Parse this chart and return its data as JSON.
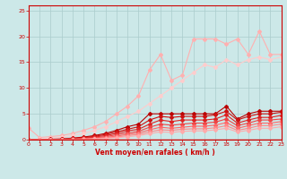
{
  "xlabel": "Vent moyen/en rafales ( km/h )",
  "ylabel": "",
  "xlim": [
    0,
    23
  ],
  "ylim": [
    0,
    26
  ],
  "yticks": [
    0,
    5,
    10,
    15,
    20,
    25
  ],
  "xticks": [
    0,
    1,
    2,
    3,
    4,
    5,
    6,
    7,
    8,
    9,
    10,
    11,
    12,
    13,
    14,
    15,
    16,
    17,
    18,
    19,
    20,
    21,
    22,
    23
  ],
  "bg_color": "#cce8e8",
  "grid_color": "#aacccc",
  "series": [
    {
      "x": [
        0,
        1,
        2,
        3,
        4,
        5,
        6,
        7,
        8,
        9,
        10,
        11,
        12,
        13,
        14,
        15,
        16,
        17,
        18,
        19,
        20,
        21,
        22,
        23
      ],
      "y": [
        2.2,
        0.4,
        0.6,
        0.8,
        1.2,
        1.8,
        2.5,
        3.5,
        5.0,
        6.5,
        8.5,
        13.5,
        16.5,
        11.5,
        12.5,
        19.5,
        19.5,
        19.5,
        18.5,
        19.5,
        16.5,
        21.0,
        16.5,
        16.5
      ],
      "color": "#ffb0b0",
      "lw": 0.8,
      "marker": "D",
      "ms": 2.0
    },
    {
      "x": [
        0,
        1,
        2,
        3,
        4,
        5,
        6,
        7,
        8,
        9,
        10,
        11,
        12,
        13,
        14,
        15,
        16,
        17,
        18,
        19,
        20,
        21,
        22,
        23
      ],
      "y": [
        0.0,
        0.1,
        0.3,
        0.5,
        0.8,
        1.2,
        1.8,
        2.5,
        3.5,
        4.5,
        5.5,
        7.0,
        8.5,
        10.0,
        11.5,
        13.0,
        14.5,
        14.0,
        15.5,
        14.5,
        15.5,
        16.0,
        15.5,
        16.0
      ],
      "color": "#ffcccc",
      "lw": 0.8,
      "marker": "D",
      "ms": 2.0
    },
    {
      "x": [
        0,
        1,
        2,
        3,
        4,
        5,
        6,
        7,
        8,
        9,
        10,
        11,
        12,
        13,
        14,
        15,
        16,
        17,
        18,
        19,
        20,
        21,
        22,
        23
      ],
      "y": [
        0.0,
        0.0,
        0.1,
        0.15,
        0.3,
        0.5,
        0.8,
        1.2,
        1.8,
        2.5,
        3.0,
        5.0,
        5.0,
        5.0,
        5.0,
        5.0,
        5.0,
        5.0,
        6.5,
        4.0,
        5.0,
        5.5,
        5.5,
        5.5
      ],
      "color": "#bb0000",
      "lw": 0.8,
      "marker": "D",
      "ms": 2.0
    },
    {
      "x": [
        0,
        1,
        2,
        3,
        4,
        5,
        6,
        7,
        8,
        9,
        10,
        11,
        12,
        13,
        14,
        15,
        16,
        17,
        18,
        19,
        20,
        21,
        22,
        23
      ],
      "y": [
        0.0,
        0.0,
        0.05,
        0.1,
        0.2,
        0.4,
        0.65,
        1.0,
        1.5,
        2.0,
        2.5,
        3.8,
        4.5,
        4.3,
        4.5,
        4.5,
        4.5,
        4.8,
        5.5,
        3.8,
        4.5,
        5.0,
        5.0,
        5.3
      ],
      "color": "#cc1111",
      "lw": 0.8,
      "marker": "D",
      "ms": 2.0
    },
    {
      "x": [
        0,
        1,
        2,
        3,
        4,
        5,
        6,
        7,
        8,
        9,
        10,
        11,
        12,
        13,
        14,
        15,
        16,
        17,
        18,
        19,
        20,
        21,
        22,
        23
      ],
      "y": [
        0.0,
        0.0,
        0.02,
        0.07,
        0.15,
        0.28,
        0.5,
        0.8,
        1.2,
        1.7,
        2.0,
        3.0,
        3.8,
        3.5,
        3.8,
        3.8,
        3.8,
        4.0,
        4.8,
        3.2,
        3.8,
        4.3,
        4.3,
        4.7
      ],
      "color": "#dd2222",
      "lw": 0.8,
      "marker": "D",
      "ms": 2.0
    },
    {
      "x": [
        0,
        1,
        2,
        3,
        4,
        5,
        6,
        7,
        8,
        9,
        10,
        11,
        12,
        13,
        14,
        15,
        16,
        17,
        18,
        19,
        20,
        21,
        22,
        23
      ],
      "y": [
        0.0,
        0.0,
        0.01,
        0.04,
        0.1,
        0.2,
        0.35,
        0.6,
        0.95,
        1.3,
        1.6,
        2.4,
        3.0,
        2.8,
        3.0,
        3.2,
        3.2,
        3.4,
        4.0,
        2.7,
        3.2,
        3.8,
        3.8,
        4.0
      ],
      "color": "#ee4444",
      "lw": 0.8,
      "marker": "D",
      "ms": 2.0
    },
    {
      "x": [
        0,
        1,
        2,
        3,
        4,
        5,
        6,
        7,
        8,
        9,
        10,
        11,
        12,
        13,
        14,
        15,
        16,
        17,
        18,
        19,
        20,
        21,
        22,
        23
      ],
      "y": [
        0.0,
        0.0,
        0.005,
        0.02,
        0.06,
        0.13,
        0.24,
        0.43,
        0.7,
        1.0,
        1.3,
        1.9,
        2.4,
        2.2,
        2.4,
        2.6,
        2.6,
        2.8,
        3.3,
        2.2,
        2.7,
        3.2,
        3.2,
        3.5
      ],
      "color": "#ff6666",
      "lw": 0.8,
      "marker": "D",
      "ms": 2.0
    },
    {
      "x": [
        0,
        1,
        2,
        3,
        4,
        5,
        6,
        7,
        8,
        9,
        10,
        11,
        12,
        13,
        14,
        15,
        16,
        17,
        18,
        19,
        20,
        21,
        22,
        23
      ],
      "y": [
        0.0,
        0.0,
        0.002,
        0.01,
        0.04,
        0.09,
        0.17,
        0.3,
        0.5,
        0.78,
        1.0,
        1.5,
        1.9,
        1.8,
        2.0,
        2.1,
        2.1,
        2.3,
        2.7,
        1.8,
        2.2,
        2.7,
        2.7,
        3.0
      ],
      "color": "#ff8888",
      "lw": 0.8,
      "marker": "D",
      "ms": 2.0
    },
    {
      "x": [
        0,
        1,
        2,
        3,
        4,
        5,
        6,
        7,
        8,
        9,
        10,
        11,
        12,
        13,
        14,
        15,
        16,
        17,
        18,
        19,
        20,
        21,
        22,
        23
      ],
      "y": [
        0.0,
        0.0,
        0.001,
        0.005,
        0.02,
        0.06,
        0.12,
        0.22,
        0.38,
        0.58,
        0.78,
        1.15,
        1.5,
        1.4,
        1.6,
        1.7,
        1.7,
        1.9,
        2.2,
        1.5,
        1.8,
        2.2,
        2.2,
        2.5
      ],
      "color": "#ffaaaa",
      "lw": 0.8,
      "marker": "D",
      "ms": 2.0
    }
  ]
}
